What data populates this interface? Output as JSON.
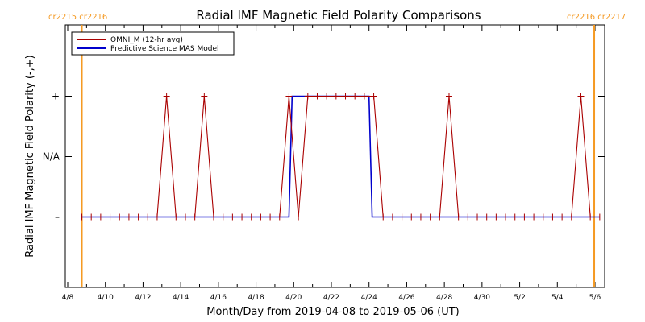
{
  "chart_data": {
    "type": "line",
    "title": "Radial IMF Magnetic Field Polarity Comparisons",
    "xlabel": "Month/Day from 2019-04-08 to 2019-05-06 (UT)",
    "ylabel": "Radial IMF Magnetic Field Polarity (-,+)",
    "x_range": [
      "2019-04-08",
      "2019-05-06"
    ],
    "x_ticks": [
      "4/8",
      "4/10",
      "4/12",
      "4/14",
      "4/16",
      "4/18",
      "4/20",
      "4/22",
      "4/24",
      "4/26",
      "4/28",
      "4/30",
      "5/2",
      "5/4",
      "5/6"
    ],
    "y_ticks": [
      "+",
      "N/A",
      "–"
    ],
    "y_values_legend": {
      "+": 1,
      "N/A": 0,
      "–": -1
    },
    "ylim": [
      -2,
      2
    ],
    "legend": {
      "position": "top-left"
    },
    "carrington_rotations": [
      {
        "labels": "cr2215 cr2216",
        "date": "2019-04-08 18:00"
      },
      {
        "labels": "cr2216 cr2217",
        "date": "2019-05-05 23:00"
      }
    ],
    "series": [
      {
        "name": "OMNI_M (12-hr avg)",
        "color": "#aa0000",
        "x": [
          "2019-04-08 18:00",
          "2019-04-09 06:00",
          "2019-04-09 18:00",
          "2019-04-10 06:00",
          "2019-04-10 18:00",
          "2019-04-11 06:00",
          "2019-04-11 18:00",
          "2019-04-12 06:00",
          "2019-04-12 18:00",
          "2019-04-13 06:00",
          "2019-04-13 18:00",
          "2019-04-14 06:00",
          "2019-04-14 18:00",
          "2019-04-15 06:00",
          "2019-04-15 18:00",
          "2019-04-16 06:00",
          "2019-04-16 18:00",
          "2019-04-17 06:00",
          "2019-04-17 18:00",
          "2019-04-18 06:00",
          "2019-04-18 18:00",
          "2019-04-19 06:00",
          "2019-04-19 18:00",
          "2019-04-20 06:00",
          "2019-04-20 18:00",
          "2019-04-21 06:00",
          "2019-04-21 18:00",
          "2019-04-22 06:00",
          "2019-04-22 18:00",
          "2019-04-23 06:00",
          "2019-04-23 18:00",
          "2019-04-24 06:00",
          "2019-04-24 18:00",
          "2019-04-25 06:00",
          "2019-04-25 18:00",
          "2019-04-26 06:00",
          "2019-04-26 18:00",
          "2019-04-27 06:00",
          "2019-04-27 18:00",
          "2019-04-28 06:00",
          "2019-04-28 18:00",
          "2019-04-29 06:00",
          "2019-04-29 18:00",
          "2019-04-30 06:00",
          "2019-04-30 18:00",
          "2019-05-01 06:00",
          "2019-05-01 18:00",
          "2019-05-02 06:00",
          "2019-05-02 18:00",
          "2019-05-03 06:00",
          "2019-05-03 18:00",
          "2019-05-04 06:00",
          "2019-05-04 18:00",
          "2019-05-05 06:00",
          "2019-05-05 18:00",
          "2019-05-06 06:00"
        ],
        "values": [
          -1,
          -1,
          -1,
          -1,
          -1,
          -1,
          -1,
          -1,
          -1,
          1,
          -1,
          -1,
          -1,
          1,
          -1,
          -1,
          -1,
          -1,
          -1,
          -1,
          -1,
          -1,
          1,
          -1,
          1,
          1,
          1,
          1,
          1,
          1,
          1,
          1,
          -1,
          -1,
          -1,
          -1,
          -1,
          -1,
          -1,
          1,
          -1,
          -1,
          -1,
          -1,
          -1,
          -1,
          -1,
          -1,
          -1,
          -1,
          -1,
          -1,
          -1,
          1,
          -1,
          -1
        ]
      },
      {
        "name": "Predictive Science MAS Model",
        "color": "#0000cc",
        "x": [
          "2019-04-08 18:00",
          "2019-04-19 18:00",
          "2019-04-19 22:00",
          "2019-04-24 00:00",
          "2019-04-24 04:00",
          "2019-05-06 06:00"
        ],
        "values": [
          -1,
          -1,
          1,
          1,
          -1,
          -1
        ]
      }
    ]
  }
}
